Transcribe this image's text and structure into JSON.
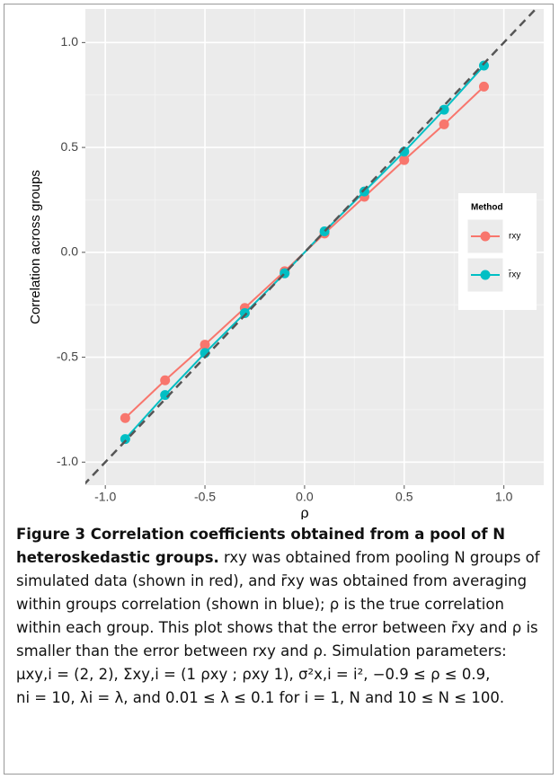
{
  "chart_data": {
    "type": "line",
    "xlabel": "ρ",
    "ylabel": "Correlation across groups",
    "x": [
      -0.9,
      -0.7,
      -0.5,
      -0.3,
      -0.1,
      0.1,
      0.3,
      0.5,
      0.7,
      0.9
    ],
    "series": [
      {
        "name": "rxy",
        "color": "#f8766d",
        "values": [
          -0.79,
          -0.61,
          -0.44,
          -0.265,
          -0.09,
          0.09,
          0.265,
          0.44,
          0.61,
          0.79
        ]
      },
      {
        "name": "r̄xy",
        "color": "#00bfc4",
        "values": [
          -0.89,
          -0.68,
          -0.48,
          -0.29,
          -0.1,
          0.1,
          0.29,
          0.48,
          0.68,
          0.89
        ]
      }
    ],
    "legend_title": "Method",
    "legend": "right",
    "xlim": [
      -1.1,
      1.2
    ],
    "ylim": [
      -1.11,
      1.16
    ],
    "xticks": [
      {
        "value": -1,
        "label": "-1.0"
      },
      -0.5,
      {
        "value": 0,
        "label": "0.0"
      },
      0.5,
      {
        "value": 1,
        "label": "1.0"
      }
    ],
    "yticks": [
      {
        "value": -1,
        "label": "-1.0"
      },
      -0.5,
      {
        "value": 0,
        "label": "0.0"
      },
      0.5,
      {
        "value": 1,
        "label": "1.0"
      }
    ],
    "grid": true,
    "minor_grid": true,
    "identity_line": true
  },
  "caption": {
    "title": "Figure 3 Correlation coefficients obtained from a pool of N heteroskedastic groups.",
    "text": "rxy was obtained from pooling N groups of simulated data (shown in red), and r̄xy was obtained from averaging within groups correlation (shown in blue); ρ is the true correlation within each group. This plot shows that the error between r̄xy and ρ is smaller than the error between rxy and ρ. Simulation parameters:",
    "formula1": "μxy,i = (2, 2), Σxy,i = (1  ρxy ; ρxy  1), σ²x,i = i², −0.9 ≤ ρ ≤ 0.9,",
    "formula2": "ni = 10, λi = λ, and 0.01 ≤ λ ≤ 0.1 for i = 1, N and 10 ≤ N ≤ 100."
  }
}
